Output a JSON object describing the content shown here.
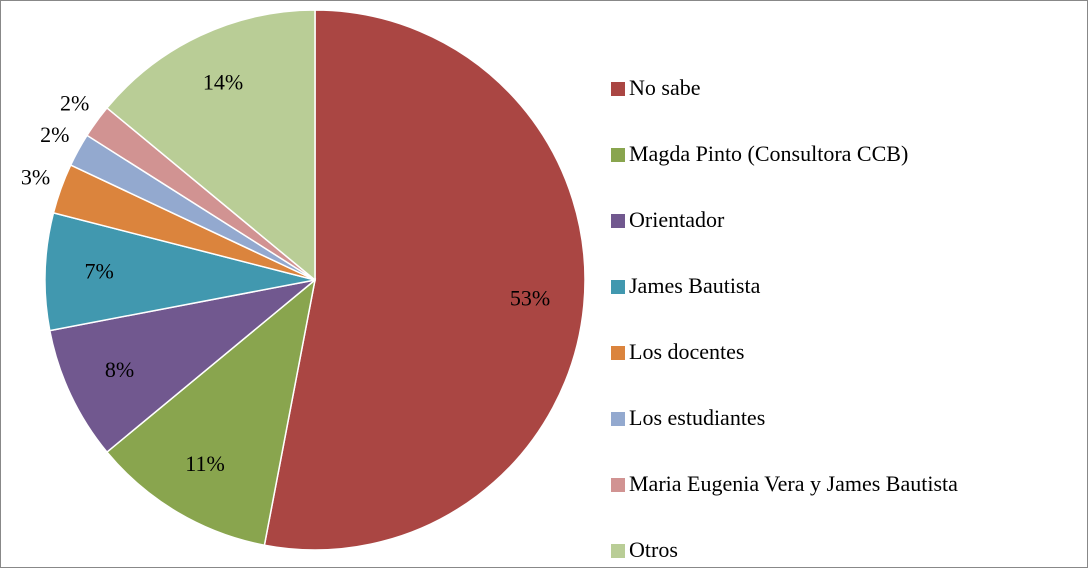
{
  "chart_data": {
    "type": "pie",
    "categories": [
      "No sabe",
      "Magda Pinto (Consultora CCB)",
      "Orientador",
      "James Bautista",
      "Los docentes",
      "Los estudiantes",
      "Maria Eugenia Vera y James Bautista",
      "Otros"
    ],
    "values": [
      53,
      11,
      8,
      7,
      3,
      2,
      2,
      14
    ],
    "value_labels": [
      "53%",
      "11%",
      "8%",
      "7%",
      "3%",
      "2%",
      "2%",
      "14%"
    ],
    "colors": [
      "#AA4643",
      "#89A54E",
      "#71588F",
      "#4198AF",
      "#DB843D",
      "#93A9CF",
      "#D19392",
      "#B9CD96"
    ],
    "legend": "right"
  }
}
